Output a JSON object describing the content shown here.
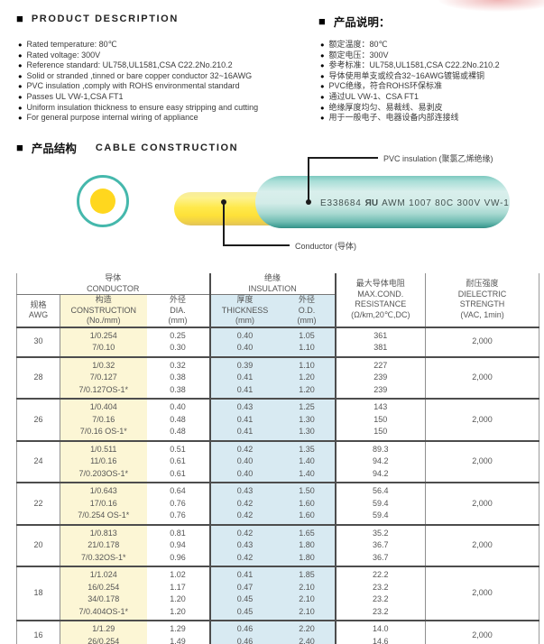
{
  "colors": {
    "insulation-teal": "#45b8ac",
    "conductor-yellow": "#ffd71e",
    "col-yellow-bg": "#fcf6d5",
    "col-blue-bg": "#d8eaf2",
    "accent-red": "#df6c6c"
  },
  "icons": {
    "bullet": "●",
    "section_square": "■"
  },
  "description_en": {
    "title": "PRODUCT DESCRIPTION",
    "items": [
      "Rated temperature: 80℃",
      "Rated voltage: 300V",
      "Reference standard: UL758,UL1581,CSA C22.2No.210.2",
      "Solid or stranded ,tinned or bare copper conductor 32~16AWG",
      "PVC insulation ,comply with ROHS environmental standard",
      "Passes UL VW-1,CSA FT1",
      "Uniform insulation thickness to ensure easy stripping and cutting",
      "For general purpose internal wiring of appliance"
    ]
  },
  "description_cn": {
    "title": "产品说明：",
    "items": [
      "额定温度：80℃",
      "额定电压：300V",
      "参考标准：UL758,UL1581,CSA C22.2No.210.2",
      "导体使用单支或绞合32~16AWG镀锡或裸铜",
      "PVC绝缘，符合ROHS环保标准",
      "通过UL VW-1、CSA FT1",
      "绝缘厚度均匀、易裁线、易剥皮",
      "用于一般电子、电器设备内部连接线"
    ]
  },
  "construction": {
    "title_cn": "产品结构",
    "title_en": "CABLE CONSTRUCTION",
    "pvc_label": "PVC insulation (聚氯乙烯绝缘)",
    "conductor_label": "Conductor (导体)",
    "print_code": "E338684",
    "print_mark": "ЯU",
    "print_spec": "AWM 1007 80C 300V VW-1"
  },
  "table": {
    "header": {
      "conductor_cn": "导体",
      "conductor_en": "CONDUCTOR",
      "insulation_cn": "绝缘",
      "insulation_en": "INSULATION",
      "awg_cn": "规格",
      "awg_en": "AWG",
      "construction_cn": "构造",
      "construction_en": "CONSTRUCTION",
      "construction_unit": "(No./mm)",
      "dia_cn": "外径",
      "dia_en": "DIA.",
      "dia_unit": "(mm)",
      "thickness_cn": "厚度",
      "thickness_en": "THICKNESS",
      "thickness_unit": "(mm)",
      "od_cn": "外径",
      "od_en": "O.D.",
      "od_unit": "(mm)",
      "resistance_cn": "最大导体电阻",
      "resistance_en1": "MAX.COND.",
      "resistance_en2": "RESISTANCE",
      "resistance_unit": "(Ω/km,20℃,DC)",
      "dielectric_cn": "耐压强度",
      "dielectric_en1": "DIELECTRIC",
      "dielectric_en2": "STRENGTH",
      "dielectric_unit": "(VAC, 1min)"
    },
    "rows": [
      {
        "awg": "30",
        "construction": [
          "1/0.254",
          "7/0.10"
        ],
        "dia": [
          "0.25",
          "0.30"
        ],
        "thickness": [
          "0.40",
          "0.40"
        ],
        "od": [
          "1.05",
          "1.10"
        ],
        "resistance": [
          "361",
          "381"
        ],
        "dielectric": "2,000"
      },
      {
        "awg": "28",
        "construction": [
          "1/0.32",
          "7/0.127",
          "7/0.127OS-1*"
        ],
        "dia": [
          "0.32",
          "0.38",
          "0.38"
        ],
        "thickness": [
          "0.39",
          "0.41",
          "0.41"
        ],
        "od": [
          "1.10",
          "1.20",
          "1.20"
        ],
        "resistance": [
          "227",
          "239",
          "239"
        ],
        "dielectric": "2,000"
      },
      {
        "awg": "26",
        "construction": [
          "1/0.404",
          "7/0.16",
          "7/0.16 OS-1*"
        ],
        "dia": [
          "0.40",
          "0.48",
          "0.48"
        ],
        "thickness": [
          "0.43",
          "0.41",
          "0.41"
        ],
        "od": [
          "1.25",
          "1.30",
          "1.30"
        ],
        "resistance": [
          "143",
          "150",
          "150"
        ],
        "dielectric": "2,000"
      },
      {
        "awg": "24",
        "construction": [
          "1/0.511",
          "11/0.16",
          "7/0.203OS-1*"
        ],
        "dia": [
          "0.51",
          "0.61",
          "0.61"
        ],
        "thickness": [
          "0.42",
          "0.40",
          "0.40"
        ],
        "od": [
          "1.35",
          "1.40",
          "1.40"
        ],
        "resistance": [
          "89.3",
          "94.2",
          "94.2"
        ],
        "dielectric": "2,000"
      },
      {
        "awg": "22",
        "construction": [
          "1/0.643",
          "17/0.16",
          "7/0.254 OS-1*"
        ],
        "dia": [
          "0.64",
          "0.76",
          "0.76"
        ],
        "thickness": [
          "0.43",
          "0.42",
          "0.42"
        ],
        "od": [
          "1.50",
          "1.60",
          "1.60"
        ],
        "resistance": [
          "56.4",
          "59.4",
          "59.4"
        ],
        "dielectric": "2,000"
      },
      {
        "awg": "20",
        "construction": [
          "1/0.813",
          "21/0.178",
          "7/0.32OS-1*"
        ],
        "dia": [
          "0.81",
          "0.94",
          "0.96"
        ],
        "thickness": [
          "0.42",
          "0.43",
          "0.42"
        ],
        "od": [
          "1.65",
          "1.80",
          "1.80"
        ],
        "resistance": [
          "35.2",
          "36.7",
          "36.7"
        ],
        "dielectric": "2,000"
      },
      {
        "awg": "18",
        "construction": [
          "1/1.024",
          "16/0.254",
          "34/0.178",
          "7/0.404OS-1*"
        ],
        "dia": [
          "1.02",
          "1.17",
          "1.20",
          "1.20"
        ],
        "thickness": [
          "0.41",
          "0.47",
          "0.45",
          "0.45"
        ],
        "od": [
          "1.85",
          "2.10",
          "2.10",
          "2.10"
        ],
        "resistance": [
          "22.2",
          "23.2",
          "23.2",
          "23.2"
        ],
        "dielectric": "2,000"
      },
      {
        "awg": "16",
        "construction": [
          "1/1.29",
          "26/0.254"
        ],
        "dia": [
          "1.29",
          "1.49"
        ],
        "thickness": [
          "0.46",
          "0.46"
        ],
        "od": [
          "2.20",
          "2.40"
        ],
        "resistance": [
          "14.0",
          "14.6"
        ],
        "dielectric": "2,000"
      }
    ]
  }
}
